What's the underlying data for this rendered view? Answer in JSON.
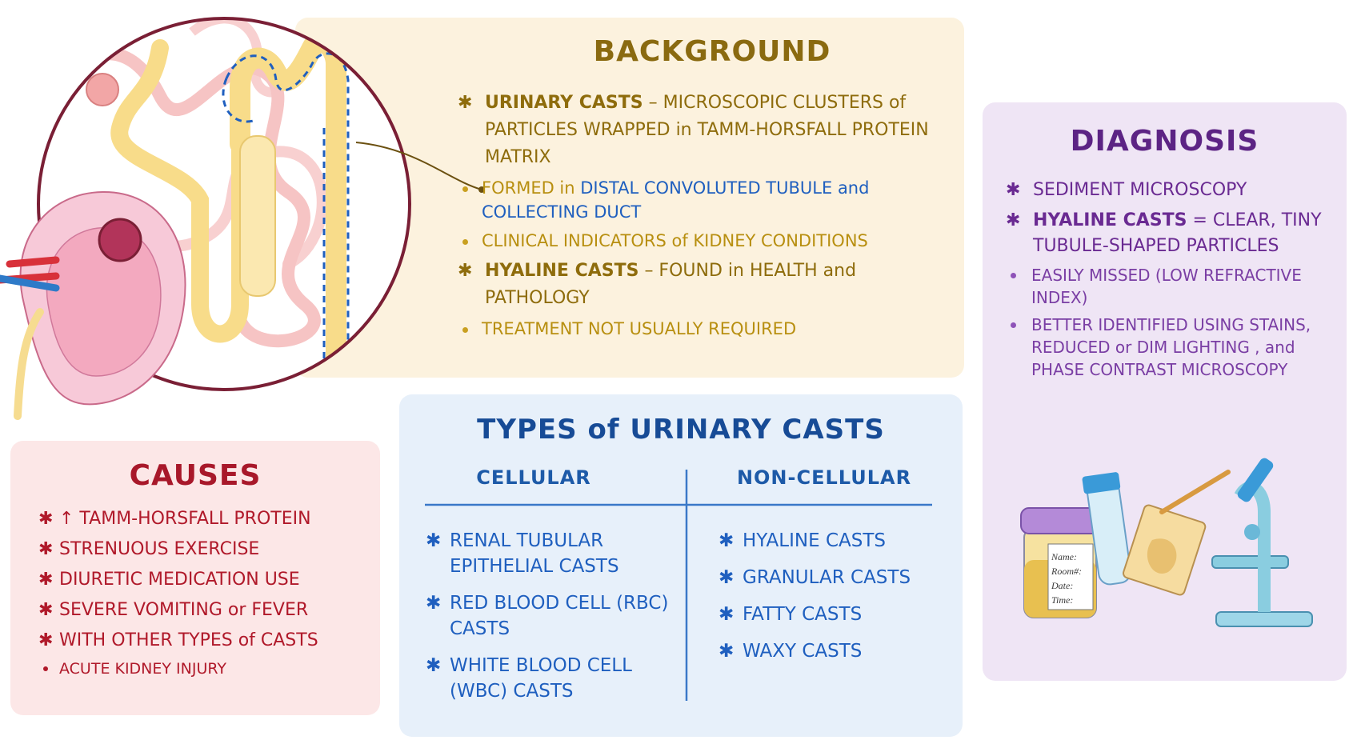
{
  "background": {
    "title": "BACKGROUND",
    "items": [
      {
        "lead": "URINARY CASTS",
        "text": "– MICROSCOPIC CLUSTERS of PARTICLES WRAPPED in TAMM-HORSFALL PROTEIN MATRIX",
        "subitems": [
          {
            "parts": [
              "FORMED in",
              "DISTAL CONVOLUTED TUBULE",
              "and",
              "COLLECTING DUCT"
            ]
          },
          {
            "parts": [
              "CLINICAL INDICATORS of KIDNEY CONDITIONS"
            ]
          }
        ]
      },
      {
        "lead": "HYALINE CASTS",
        "text": "– FOUND in HEALTH and PATHOLOGY",
        "subitems": [
          {
            "parts": [
              "TREATMENT NOT USUALLY REQUIRED"
            ]
          }
        ]
      }
    ]
  },
  "diagnosis": {
    "title": "DIAGNOSIS",
    "items": [
      {
        "text": "SEDIMENT MICROSCOPY"
      },
      {
        "lead": "HYALINE CASTS",
        "text": "= CLEAR, TINY TUBULE-SHAPED PARTICLES",
        "subitems": [
          "EASILY MISSED (LOW REFRACTIVE INDEX)",
          "BETTER IDENTIFIED USING STAINS, REDUCED or DIM LIGHTING , and PHASE CONTRAST MICROSCOPY"
        ]
      }
    ],
    "label_fields": [
      "Name:",
      "Room#:",
      "Date:",
      "Time:"
    ]
  },
  "causes": {
    "title": "CAUSES",
    "items": [
      "↑ TAMM-HORSFALL PROTEIN",
      "STRENUOUS EXERCISE",
      "DIURETIC MEDICATION USE",
      "SEVERE VOMITING or FEVER",
      "WITH OTHER TYPES of CASTS"
    ],
    "subitems": [
      "ACUTE KIDNEY INJURY"
    ]
  },
  "types": {
    "title": "TYPES of URINARY CASTS",
    "columns": [
      {
        "heading": "CELLULAR",
        "items": [
          "RENAL TUBULAR EPITHELIAL CASTS",
          "RED BLOOD CELL (RBC) CASTS",
          "WHITE BLOOD CELL (WBC) CASTS"
        ]
      },
      {
        "heading": "NON-CELLULAR",
        "items": [
          "HYALINE CASTS",
          "GRANULAR CASTS",
          "FATTY CASTS",
          "WAXY CASTS"
        ]
      }
    ]
  }
}
